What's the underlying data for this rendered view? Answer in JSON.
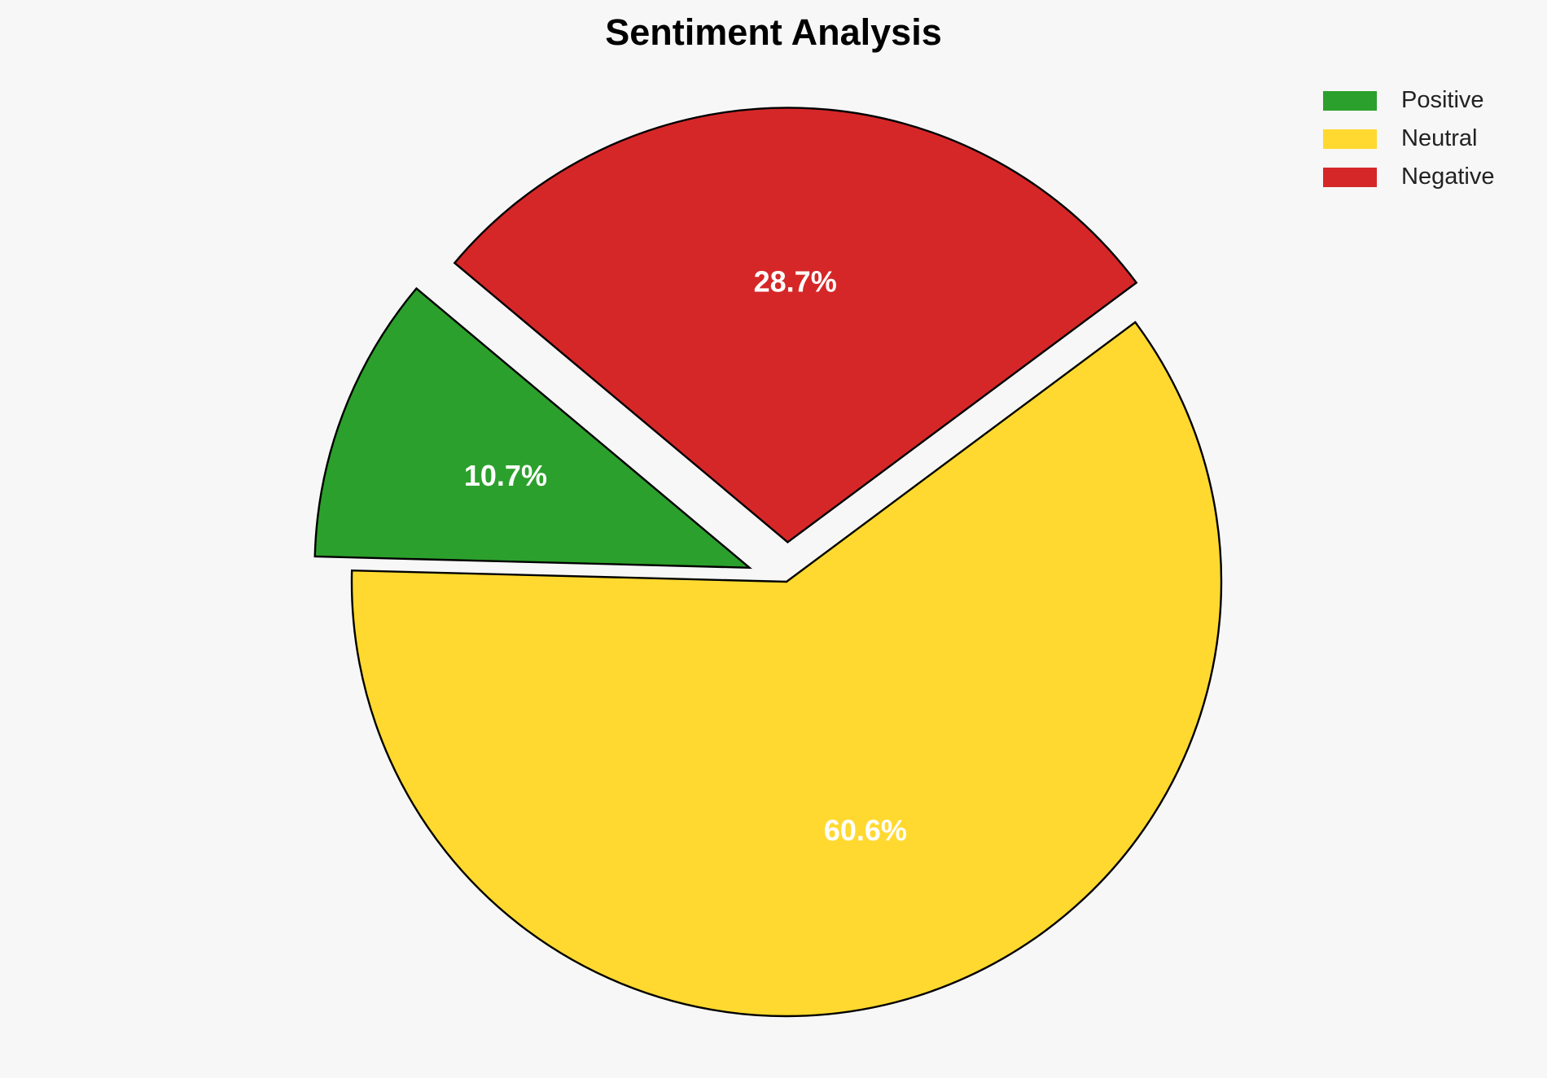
{
  "chart_data": {
    "type": "pie",
    "title": "Sentiment Analysis",
    "categories": [
      "Positive",
      "Neutral",
      "Negative"
    ],
    "values": [
      10.7,
      60.6,
      28.7
    ],
    "labels": [
      "10.7%",
      "60.6%",
      "28.7%"
    ],
    "colors": [
      "#2ca02c",
      "#ffd92f",
      "#d62728"
    ],
    "explode": [
      0.1,
      0,
      0.1
    ],
    "start_angle": 140,
    "counterclockwise": true,
    "legend_position": "top-right",
    "edge_color": "#000000",
    "label_color": "#ffffff"
  }
}
